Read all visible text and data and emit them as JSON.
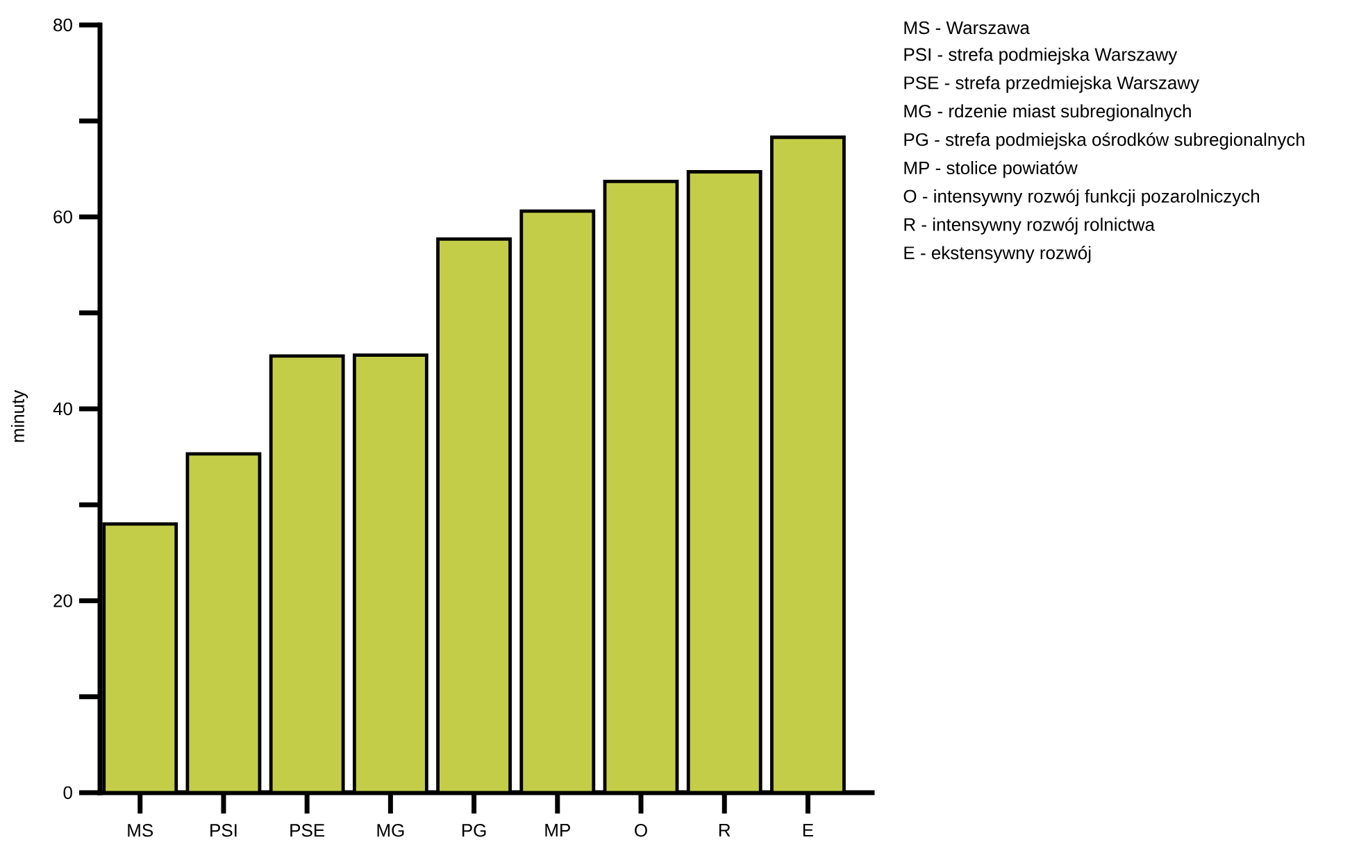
{
  "chart_data": {
    "type": "bar",
    "categories": [
      "MS",
      "PSI",
      "PSE",
      "MG",
      "PG",
      "MP",
      "O",
      "R",
      "E"
    ],
    "values": [
      28,
      35.3,
      45.5,
      45.6,
      57.7,
      60.6,
      63.7,
      64.7,
      68.3
    ],
    "color": "#c3cd48",
    "ylabel": "minuty",
    "ylim": [
      0,
      80
    ],
    "yticks": [
      0,
      {
        "value": 10,
        "label": null
      },
      20,
      {
        "value": 30,
        "label": null
      },
      40,
      {
        "value": 50,
        "label": null
      },
      60,
      {
        "value": 70,
        "label": null
      },
      80
    ],
    "grid": false,
    "annotations": [
      "MS - Warszawa",
      "PSI - strefa podmiejska Warszawy",
      "PSE - strefa przedmiejska Warszawy",
      "MG - rdzenie miast subregionalnych",
      "PG - strefa podmiejska ośrodków subregionalnych",
      "MP - stolice powiatów",
      "O - intensywny rozwój funkcji pozarolniczych",
      "R - intensywny rozwój rolnictwa",
      "E - ekstensywny rozwój"
    ]
  }
}
